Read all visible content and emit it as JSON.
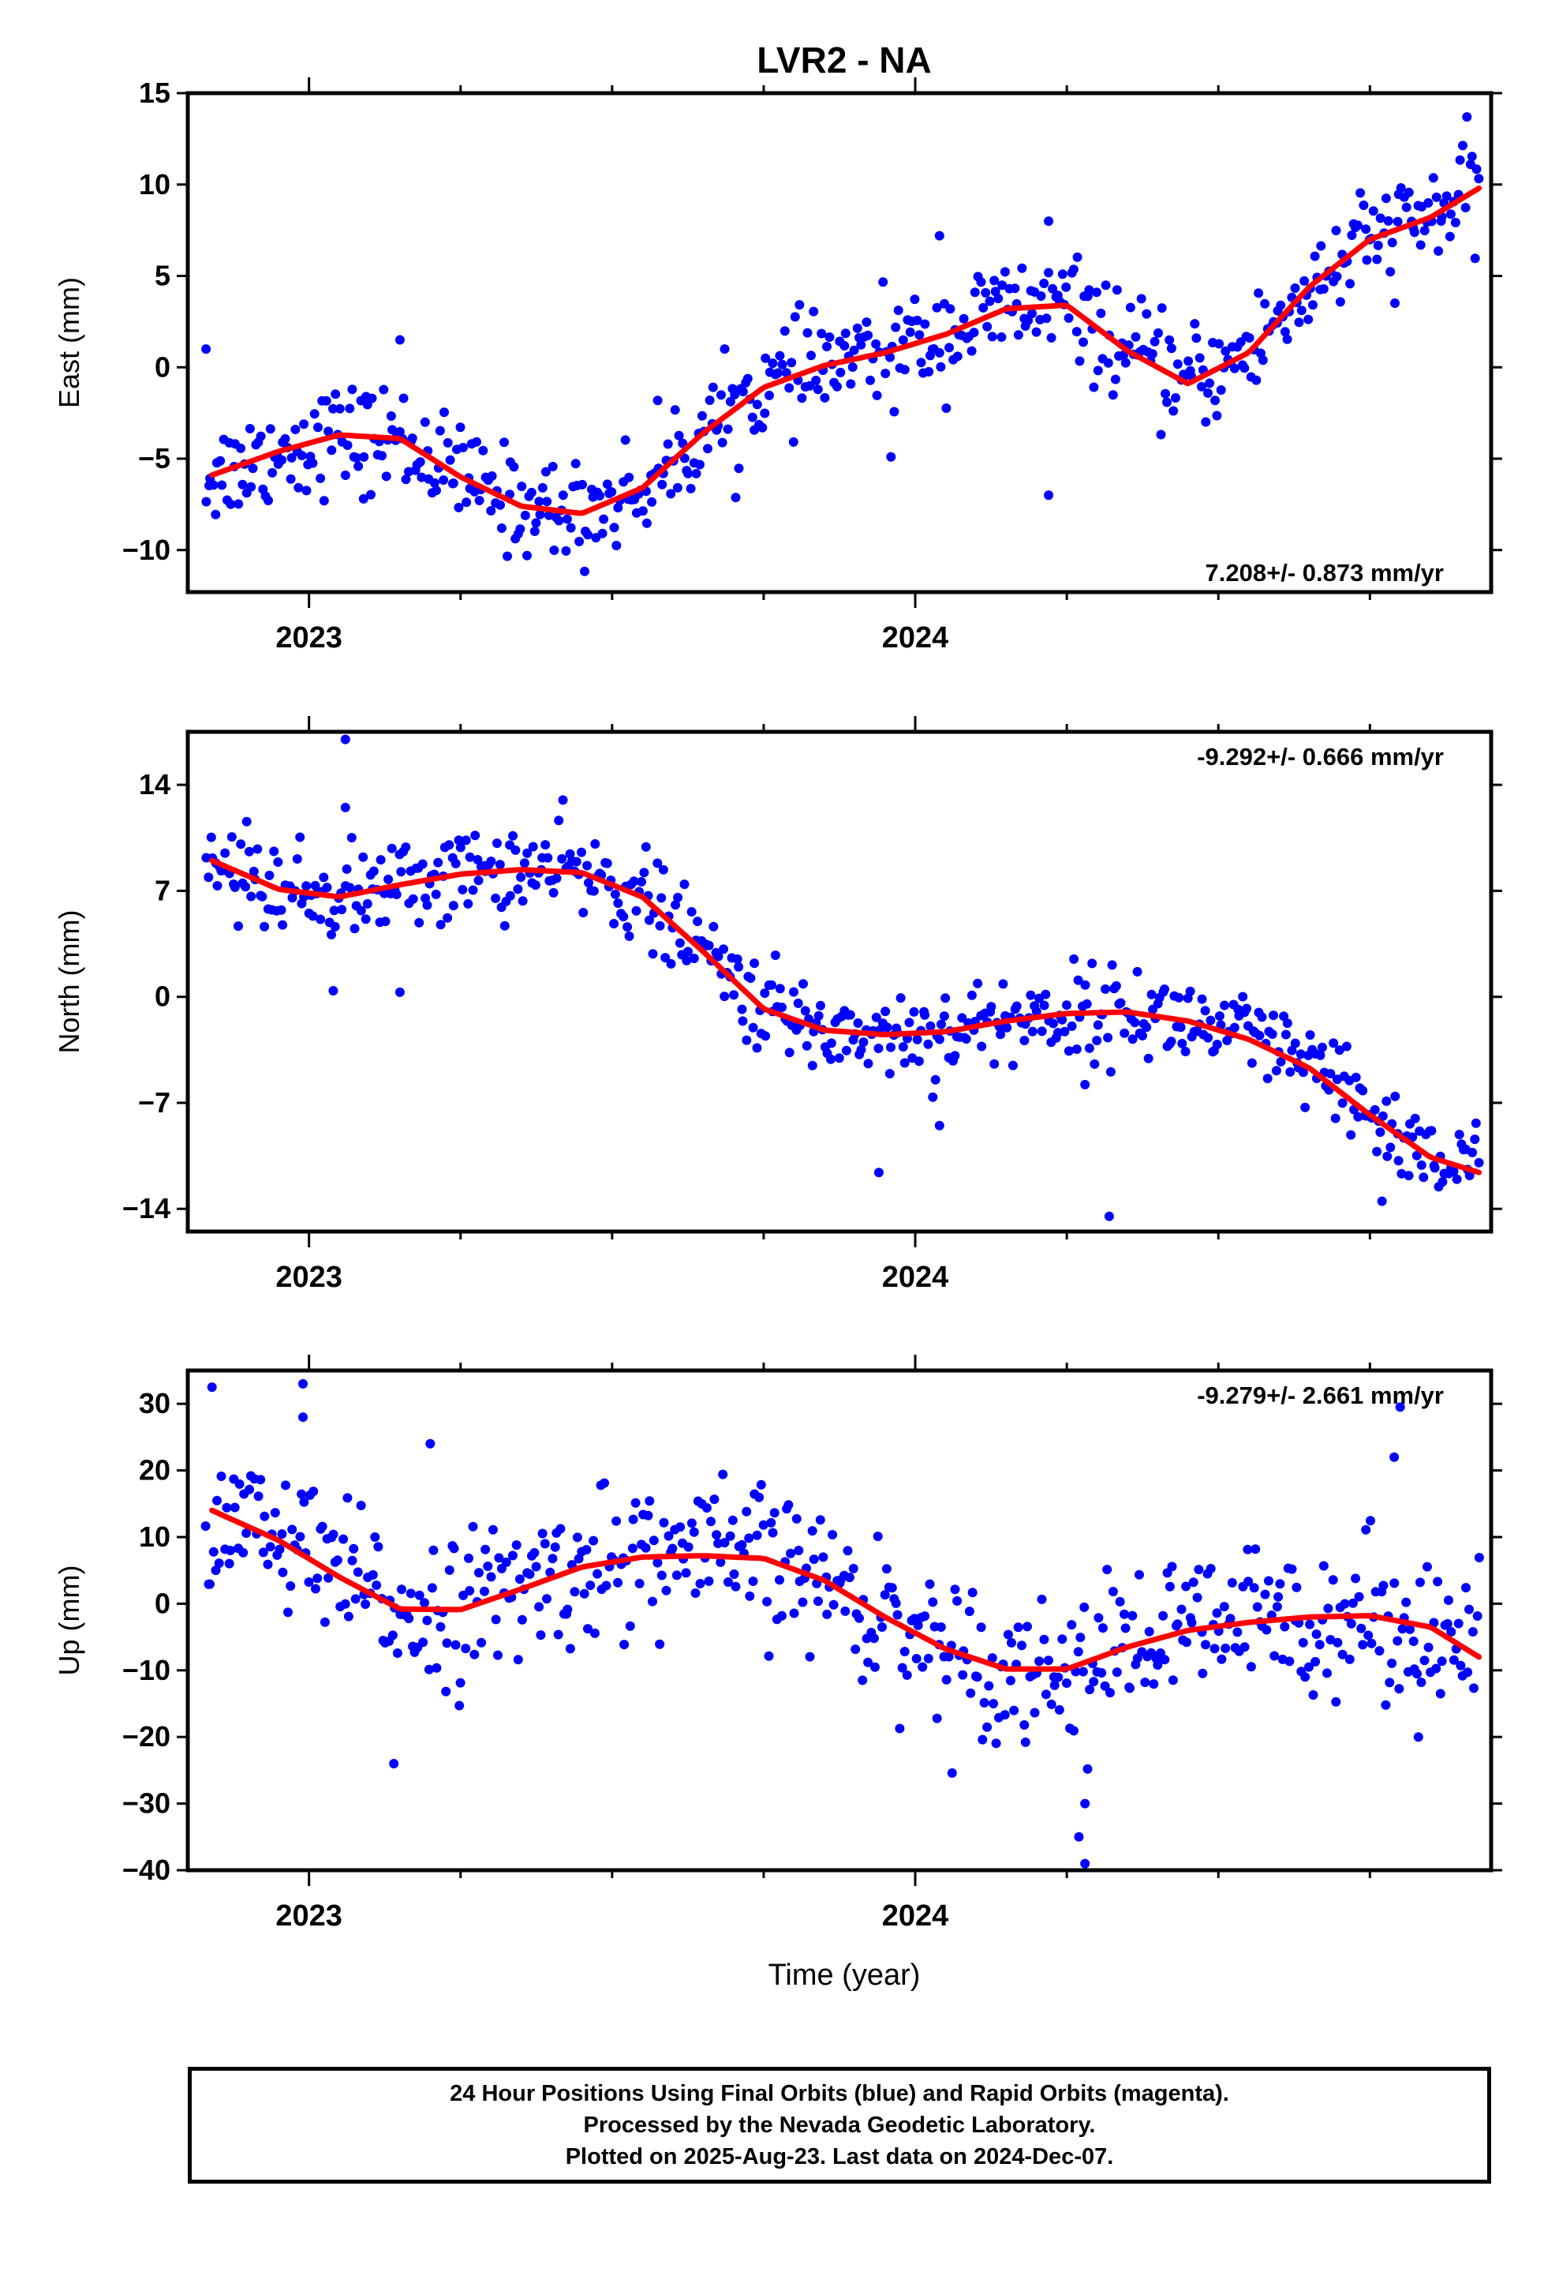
{
  "colors": {
    "final_orbits": "#0000ff",
    "trend": "#ff0000",
    "axes": "#000000"
  },
  "chart_data": [
    {
      "type": "scatter",
      "title": "LVR2 - NA",
      "xlabel": "",
      "ylabel": "East (mm)",
      "xlim": [
        2022.8,
        2024.95
      ],
      "ylim": [
        -12.3,
        15
      ],
      "yticks": [
        15,
        10,
        5,
        0,
        -5,
        -10
      ],
      "xticks": [
        2023,
        2024
      ],
      "rate_label": "7.208+/- 0.873 mm/yr",
      "rate_position": "bottom-right",
      "series": [
        {
          "kind": "points",
          "color": "#0000ff",
          "noise": 1.4,
          "outliers": [
            [
              2022.83,
              1.0
            ],
            [
              2023.15,
              1.5
            ],
            [
              2023.96,
              -4.9
            ],
            [
              2024.04,
              7.2
            ],
            [
              2024.22,
              8.0
            ],
            [
              2024.22,
              -7.0
            ],
            [
              2023.09,
              -7.2
            ]
          ]
        },
        {
          "kind": "trend",
          "color": "#ff0000",
          "x": [
            2022.84,
            2022.95,
            2023.05,
            2023.15,
            2023.25,
            2023.35,
            2023.45,
            2023.55,
            2023.65,
            2023.75,
            2023.85,
            2023.95,
            2024.05,
            2024.15,
            2024.25,
            2024.35,
            2024.45,
            2024.55,
            2024.65,
            2024.75,
            2024.85,
            2024.93
          ],
          "y": [
            -5.9,
            -4.6,
            -3.7,
            -3.9,
            -6.0,
            -7.6,
            -8.0,
            -6.6,
            -3.6,
            -1.1,
            0.1,
            0.8,
            1.8,
            3.2,
            3.4,
            0.9,
            -0.9,
            0.8,
            4.4,
            7.0,
            8.2,
            9.8
          ]
        }
      ]
    },
    {
      "type": "scatter",
      "xlabel": "",
      "ylabel": "North (mm)",
      "xlim": [
        2022.8,
        2024.95
      ],
      "ylim": [
        -15.5,
        17.5
      ],
      "yticks": [
        14,
        7,
        0,
        -7,
        -14
      ],
      "xticks": [
        2023,
        2024
      ],
      "rate_label": "-9.292+/- 0.666 mm/yr",
      "rate_position": "top-right",
      "series": [
        {
          "kind": "points",
          "color": "#0000ff",
          "noise": 1.5,
          "outliers": [
            [
              2023.06,
              17.0
            ],
            [
              2023.06,
              12.5
            ],
            [
              2023.04,
              0.4
            ],
            [
              2023.15,
              0.3
            ],
            [
              2023.94,
              -11.6
            ],
            [
              2024.04,
              -8.5
            ],
            [
              2024.32,
              -14.5
            ],
            [
              2024.28,
              -5.8
            ],
            [
              2024.77,
              -13.5
            ]
          ]
        },
        {
          "kind": "trend",
          "color": "#ff0000",
          "x": [
            2022.84,
            2022.95,
            2023.05,
            2023.15,
            2023.25,
            2023.35,
            2023.45,
            2023.55,
            2023.65,
            2023.75,
            2023.85,
            2023.95,
            2024.05,
            2024.15,
            2024.25,
            2024.35,
            2024.45,
            2024.55,
            2024.65,
            2024.75,
            2024.85,
            2024.93
          ],
          "y": [
            9.0,
            7.1,
            6.6,
            7.4,
            8.1,
            8.4,
            8.2,
            6.6,
            3.0,
            -0.8,
            -2.2,
            -2.5,
            -2.3,
            -1.6,
            -1.1,
            -1.0,
            -1.6,
            -2.8,
            -4.7,
            -7.8,
            -10.6,
            -11.6
          ]
        }
      ]
    },
    {
      "type": "scatter",
      "xlabel": "Time (year)",
      "ylabel": "Up (mm)",
      "xlim": [
        2022.8,
        2024.95
      ],
      "ylim": [
        -40,
        35
      ],
      "yticks": [
        30,
        20,
        10,
        0,
        -10,
        -20,
        -30,
        -40
      ],
      "xticks": [
        2023,
        2024
      ],
      "rate_label": "-9.279+/- 2.661 mm/yr",
      "rate_position": "top-right",
      "series": [
        {
          "kind": "points",
          "color": "#0000ff",
          "noise": 5.5,
          "outliers": [
            [
              2022.84,
              32.5
            ],
            [
              2022.99,
              33.0
            ],
            [
              2022.99,
              28.0
            ],
            [
              2023.14,
              -24.0
            ],
            [
              2023.2,
              24.0
            ],
            [
              2024.28,
              -30.0
            ],
            [
              2024.28,
              -39.0
            ],
            [
              2024.27,
              -35.0
            ],
            [
              2024.8,
              29.5
            ],
            [
              2024.83,
              -20.0
            ],
            [
              2024.79,
              22.0
            ]
          ]
        },
        {
          "kind": "trend",
          "color": "#ff0000",
          "x": [
            2022.84,
            2022.95,
            2023.05,
            2023.15,
            2023.25,
            2023.35,
            2023.45,
            2023.55,
            2023.65,
            2023.75,
            2023.85,
            2023.95,
            2024.05,
            2024.15,
            2024.25,
            2024.35,
            2024.45,
            2024.55,
            2024.65,
            2024.75,
            2024.85,
            2024.93
          ],
          "y": [
            14.0,
            9.5,
            4.0,
            -0.8,
            -0.9,
            2.2,
            5.5,
            7.0,
            7.2,
            6.8,
            3.5,
            -2.0,
            -6.8,
            -9.8,
            -9.8,
            -6.5,
            -4.0,
            -2.8,
            -2.0,
            -1.8,
            -3.5,
            -8.0
          ]
        }
      ]
    }
  ],
  "caption": {
    "line1": "24 Hour Positions Using Final Orbits (blue) and Rapid Orbits (magenta).",
    "line2": "Processed by the Nevada Geodetic Laboratory.",
    "line3": "Plotted on 2025-Aug-23. Last data on 2024-Dec-07."
  }
}
